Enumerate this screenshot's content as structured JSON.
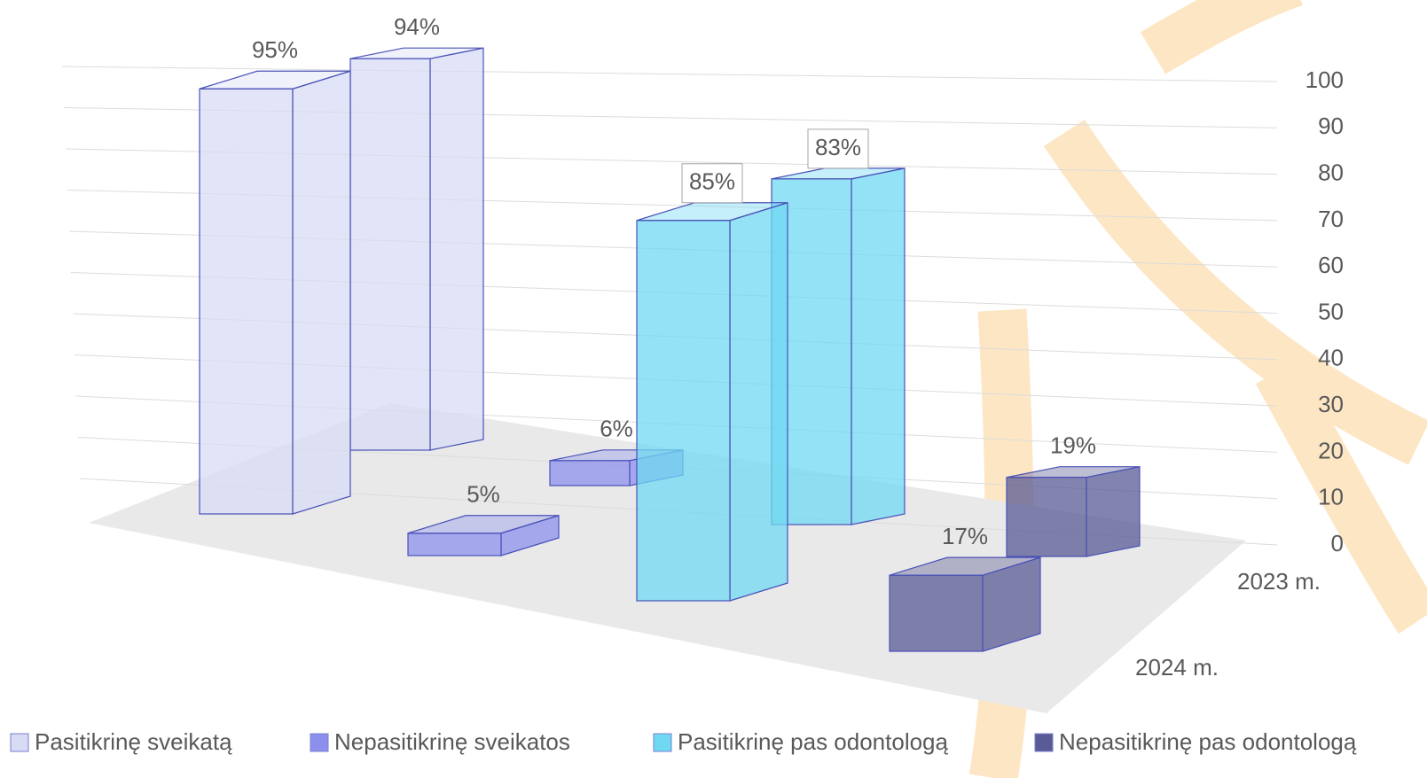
{
  "chart_data": {
    "type": "bar3d",
    "categories": [
      "2023 m.",
      "2024 m."
    ],
    "series": [
      {
        "name": "Pasitikrinę sveikatą",
        "color": "#d8dbf4",
        "values": [
          94,
          95
        ],
        "value_labels": [
          "94%",
          "95%"
        ]
      },
      {
        "name": "Nepasitikrinę sveikatos",
        "color": "#8c90ec",
        "values": [
          6,
          5
        ],
        "value_labels": [
          "6%",
          "5%"
        ]
      },
      {
        "name": "Pasitikrinę pas odontologą",
        "color": "#6fd8f2",
        "values": [
          83,
          85
        ],
        "value_labels": [
          "83%",
          "85%"
        ]
      },
      {
        "name": "Nepasitikrinę pas odontologą",
        "color": "#5a5a94",
        "values": [
          19,
          17
        ],
        "value_labels": [
          "19%",
          "17%"
        ]
      }
    ],
    "ylim": [
      0,
      100
    ],
    "yticks": [
      0,
      10,
      20,
      30,
      40,
      50,
      60,
      70,
      80,
      90,
      100
    ],
    "grid": true
  }
}
